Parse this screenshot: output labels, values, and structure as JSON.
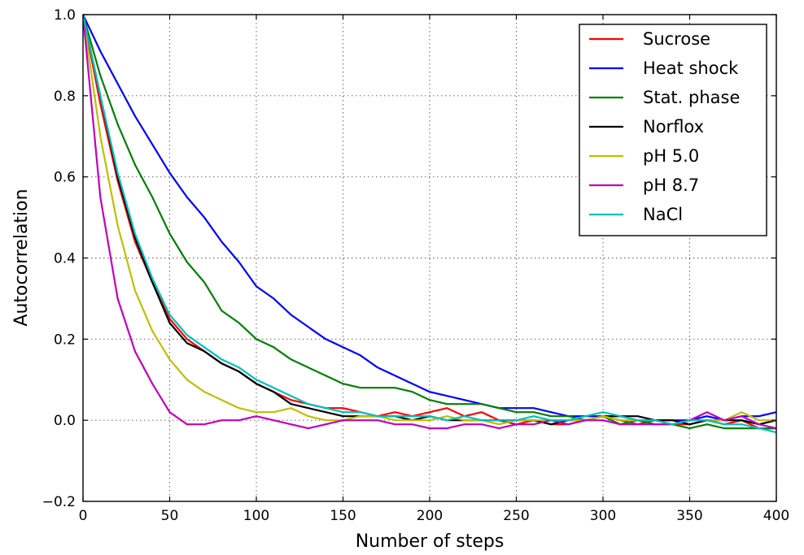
{
  "chart_data": {
    "type": "line",
    "title": "",
    "xlabel": "Number of steps",
    "ylabel": "Autocorrelation",
    "xlim": [
      0,
      400
    ],
    "ylim": [
      -0.2,
      1.0
    ],
    "xticks": [
      0,
      50,
      100,
      150,
      200,
      250,
      300,
      350,
      400
    ],
    "yticks": [
      -0.2,
      0.0,
      0.2,
      0.4,
      0.6,
      0.8,
      1.0
    ],
    "xtick_labels": [
      "0",
      "50",
      "100",
      "150",
      "200",
      "250",
      "300",
      "350",
      "400"
    ],
    "ytick_labels": [
      "−0.2",
      "0.0",
      "0.2",
      "0.4",
      "0.6",
      "0.8",
      "1.0"
    ],
    "grid": true,
    "legend_position": "top-right",
    "x": [
      0,
      10,
      20,
      30,
      40,
      50,
      60,
      70,
      80,
      90,
      100,
      110,
      120,
      130,
      140,
      150,
      160,
      170,
      180,
      190,
      200,
      210,
      220,
      230,
      240,
      250,
      260,
      270,
      280,
      290,
      300,
      310,
      320,
      330,
      340,
      350,
      360,
      370,
      380,
      390,
      400
    ],
    "series": [
      {
        "name": "Sucrose",
        "color": "#ff0000",
        "values": [
          1.0,
          0.78,
          0.59,
          0.44,
          0.34,
          0.25,
          0.2,
          0.17,
          0.14,
          0.12,
          0.09,
          0.07,
          0.05,
          0.04,
          0.03,
          0.03,
          0.02,
          0.01,
          0.02,
          0.01,
          0.02,
          0.03,
          0.01,
          0.02,
          0.0,
          -0.01,
          0.0,
          -0.01,
          -0.01,
          0.0,
          0.01,
          0.0,
          -0.01,
          0.0,
          -0.01,
          -0.01,
          0.0,
          -0.01,
          0.0,
          -0.02,
          -0.02
        ]
      },
      {
        "name": "Heat shock",
        "color": "#0000ff",
        "values": [
          1.0,
          0.91,
          0.83,
          0.75,
          0.68,
          0.61,
          0.55,
          0.5,
          0.44,
          0.39,
          0.33,
          0.3,
          0.26,
          0.23,
          0.2,
          0.18,
          0.16,
          0.13,
          0.11,
          0.09,
          0.07,
          0.06,
          0.05,
          0.04,
          0.03,
          0.03,
          0.03,
          0.02,
          0.01,
          0.01,
          0.01,
          0.01,
          0.0,
          0.0,
          0.0,
          0.0,
          0.01,
          0.0,
          0.01,
          0.01,
          0.02
        ]
      },
      {
        "name": "Stat. phase",
        "color": "#008000",
        "values": [
          1.0,
          0.85,
          0.73,
          0.63,
          0.55,
          0.46,
          0.39,
          0.34,
          0.27,
          0.24,
          0.2,
          0.18,
          0.15,
          0.13,
          0.11,
          0.09,
          0.08,
          0.08,
          0.08,
          0.07,
          0.05,
          0.04,
          0.04,
          0.04,
          0.03,
          0.02,
          0.02,
          0.01,
          0.01,
          0.0,
          0.01,
          -0.01,
          0.0,
          -0.01,
          -0.01,
          -0.02,
          -0.01,
          -0.02,
          -0.02,
          -0.02,
          -0.02
        ]
      },
      {
        "name": "Norflox",
        "color": "#000000",
        "values": [
          1.0,
          0.8,
          0.6,
          0.45,
          0.34,
          0.24,
          0.19,
          0.17,
          0.14,
          0.12,
          0.09,
          0.07,
          0.04,
          0.03,
          0.02,
          0.01,
          0.01,
          0.01,
          0.01,
          0.0,
          0.01,
          0.0,
          0.0,
          0.0,
          0.0,
          0.0,
          0.0,
          -0.01,
          0.0,
          0.0,
          0.01,
          0.01,
          0.01,
          0.0,
          0.0,
          -0.01,
          0.0,
          0.0,
          0.0,
          -0.01,
          0.0
        ]
      },
      {
        "name": "pH 5.0",
        "color": "#bfbf00",
        "values": [
          1.0,
          0.7,
          0.48,
          0.32,
          0.22,
          0.15,
          0.1,
          0.07,
          0.05,
          0.03,
          0.02,
          0.02,
          0.03,
          0.01,
          0.0,
          0.0,
          0.01,
          0.01,
          0.0,
          0.0,
          0.0,
          0.01,
          0.0,
          0.0,
          -0.01,
          0.0,
          0.0,
          0.0,
          0.0,
          0.0,
          0.01,
          0.0,
          0.0,
          0.0,
          -0.01,
          0.0,
          0.0,
          0.0,
          0.02,
          0.0,
          0.0
        ]
      },
      {
        "name": "pH 8.7",
        "color": "#bf00bf",
        "values": [
          1.0,
          0.55,
          0.3,
          0.17,
          0.09,
          0.02,
          -0.01,
          -0.01,
          0.0,
          0.0,
          0.01,
          0.0,
          -0.01,
          -0.02,
          -0.01,
          0.0,
          0.0,
          0.0,
          -0.01,
          -0.01,
          -0.02,
          -0.02,
          -0.01,
          -0.01,
          -0.02,
          -0.01,
          -0.01,
          0.0,
          -0.01,
          0.0,
          0.0,
          -0.01,
          -0.01,
          -0.01,
          -0.01,
          0.0,
          0.02,
          0.0,
          0.01,
          -0.01,
          -0.02
        ]
      },
      {
        "name": "NaCl",
        "color": "#00bfbf",
        "values": [
          1.0,
          0.8,
          0.61,
          0.46,
          0.35,
          0.26,
          0.21,
          0.18,
          0.15,
          0.13,
          0.1,
          0.08,
          0.06,
          0.04,
          0.03,
          0.02,
          0.02,
          0.01,
          0.01,
          0.01,
          0.01,
          0.0,
          0.01,
          0.0,
          0.0,
          0.0,
          0.01,
          0.0,
          0.0,
          0.01,
          0.02,
          0.01,
          0.0,
          0.0,
          -0.01,
          0.0,
          0.0,
          -0.01,
          -0.01,
          -0.02,
          -0.03
        ]
      }
    ]
  }
}
